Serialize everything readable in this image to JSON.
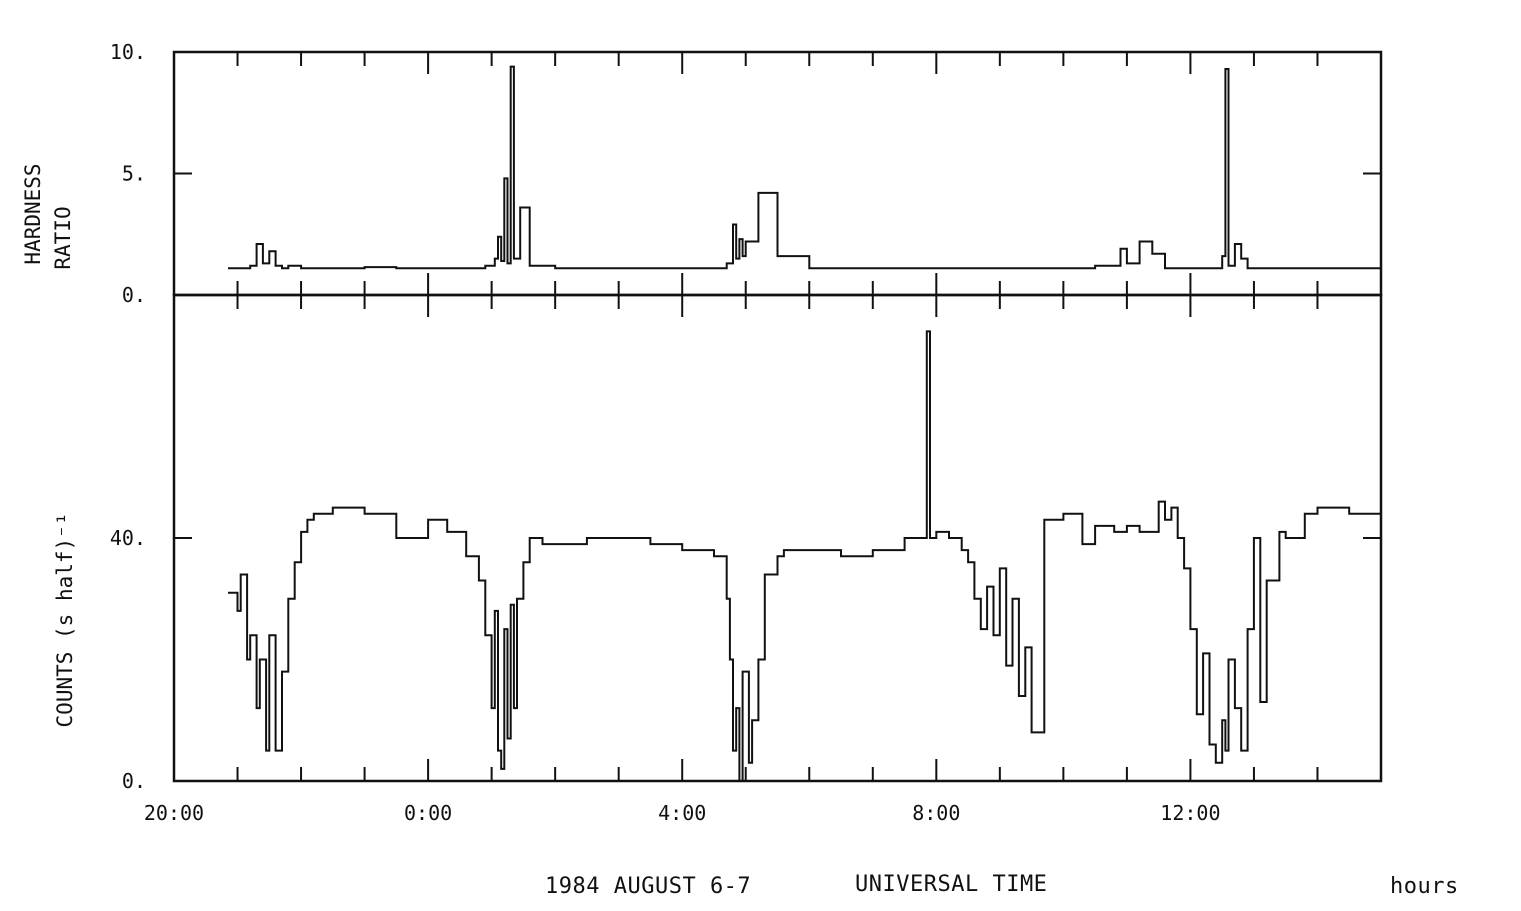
{
  "chart_data": [
    {
      "type": "line",
      "panel": "top",
      "title": "",
      "ylabel": "HARDNESS\nRATIO",
      "ylabel_lines": [
        "HARDNESS",
        "RATIO"
      ],
      "ylim": [
        0,
        10
      ],
      "yticks": [
        0,
        5,
        10
      ],
      "ytick_labels": [
        "0.",
        "5.",
        "10."
      ],
      "x_unit": "hours since 20:00 UT",
      "xlim": [
        0,
        19
      ],
      "grid": false,
      "series": [
        {
          "x": [
            0.85,
            1.2,
            1.3,
            1.4,
            1.5,
            1.6,
            1.7,
            1.8,
            2.0,
            2.5,
            3.0,
            3.5,
            4.0,
            4.5,
            4.9,
            5.0,
            5.05,
            5.1,
            5.15,
            5.2,
            5.25,
            5.3,
            5.35,
            5.45,
            5.6,
            6.0,
            7.0,
            8.0,
            8.6,
            8.7,
            8.8,
            8.85,
            8.9,
            8.95,
            9.0,
            9.2,
            9.5,
            10.0,
            11.0,
            11.5,
            12.0,
            12.4,
            12.5,
            12.6,
            13.0,
            13.5,
            14.0,
            14.5,
            14.9,
            15.0,
            15.2,
            15.4,
            15.6,
            16.0,
            16.3,
            16.45,
            16.5,
            16.55,
            16.6,
            16.7,
            16.8,
            16.9,
            17.0,
            17.2,
            17.5,
            18.0,
            18.5,
            19.0
          ],
          "y": [
            1.1,
            1.2,
            2.1,
            1.3,
            1.8,
            1.2,
            1.1,
            1.2,
            1.1,
            1.1,
            1.15,
            1.1,
            1.1,
            1.1,
            1.2,
            1.2,
            1.5,
            2.4,
            1.4,
            4.8,
            1.3,
            9.4,
            1.5,
            3.6,
            1.2,
            1.1,
            1.1,
            1.1,
            1.1,
            1.3,
            2.9,
            1.5,
            2.3,
            1.6,
            2.2,
            4.2,
            1.6,
            1.1,
            1.1,
            1.1,
            1.1,
            1.1,
            1.1,
            1.1,
            1.1,
            1.1,
            1.1,
            1.2,
            1.9,
            1.3,
            2.2,
            1.7,
            1.1,
            1.1,
            1.1,
            1.1,
            1.6,
            9.3,
            1.2,
            2.1,
            1.5,
            1.1,
            1.1,
            1.1,
            1.1,
            1.1,
            1.1,
            1.3
          ]
        }
      ]
    },
    {
      "type": "line",
      "panel": "bottom",
      "title": "",
      "ylabel": "COUNTS (s half)⁻¹",
      "ylim": [
        0,
        80
      ],
      "yticks": [
        0,
        40
      ],
      "ytick_labels": [
        "0.",
        "40."
      ],
      "xlabel": "UNIVERSAL TIME",
      "x_unit": "hours since 20:00 UT",
      "xlim": [
        0,
        19
      ],
      "xticks": [
        0,
        4,
        8,
        12,
        16
      ],
      "xtick_labels": [
        "20:00",
        "0:00",
        "4:00",
        "8:00",
        "12:00"
      ],
      "grid": false,
      "series": [
        {
          "x": [
            0.85,
            1.0,
            1.05,
            1.15,
            1.2,
            1.3,
            1.35,
            1.45,
            1.5,
            1.6,
            1.7,
            1.8,
            1.9,
            2.0,
            2.1,
            2.2,
            2.5,
            3.0,
            3.5,
            4.0,
            4.3,
            4.6,
            4.8,
            4.9,
            5.0,
            5.05,
            5.1,
            5.15,
            5.2,
            5.25,
            5.3,
            5.35,
            5.4,
            5.5,
            5.6,
            5.8,
            6.0,
            6.5,
            7.0,
            7.5,
            8.0,
            8.5,
            8.7,
            8.75,
            8.8,
            8.85,
            8.9,
            8.95,
            9.05,
            9.1,
            9.2,
            9.3,
            9.5,
            9.6,
            10.0,
            10.5,
            11.0,
            11.5,
            11.8,
            11.85,
            11.9,
            12.0,
            12.2,
            12.4,
            12.5,
            12.6,
            12.7,
            12.8,
            12.9,
            13.0,
            13.1,
            13.2,
            13.3,
            13.4,
            13.5,
            13.7,
            14.0,
            14.3,
            14.5,
            14.8,
            15.0,
            15.2,
            15.5,
            15.6,
            15.7,
            15.8,
            15.9,
            16.0,
            16.1,
            16.2,
            16.3,
            16.4,
            16.5,
            16.55,
            16.6,
            16.7,
            16.8,
            16.9,
            17.0,
            17.1,
            17.2,
            17.4,
            17.5,
            17.8,
            18.0,
            18.5,
            19.0
          ],
          "y": [
            31,
            28,
            34,
            20,
            24,
            12,
            20,
            5,
            24,
            5,
            18,
            30,
            36,
            41,
            43,
            44,
            45,
            44,
            40,
            43,
            41,
            37,
            33,
            24,
            12,
            28,
            5,
            2,
            25,
            7,
            29,
            12,
            30,
            36,
            40,
            39,
            39,
            40,
            40,
            39,
            38,
            37,
            30,
            20,
            5,
            12,
            0,
            18,
            3,
            10,
            20,
            34,
            37,
            38,
            38,
            37,
            38,
            40,
            40,
            74,
            40,
            41,
            40,
            38,
            36,
            30,
            25,
            32,
            24,
            35,
            19,
            30,
            14,
            22,
            8,
            43,
            44,
            39,
            42,
            41,
            42,
            41,
            46,
            43,
            45,
            40,
            35,
            25,
            11,
            21,
            6,
            3,
            10,
            5,
            20,
            12,
            5,
            25,
            40,
            13,
            33,
            41,
            40,
            44,
            45,
            44,
            44
          ]
        }
      ]
    }
  ],
  "caption": {
    "date": "1984 AUGUST 6-7",
    "axis_title": "UNIVERSAL TIME",
    "unit": "hours"
  }
}
